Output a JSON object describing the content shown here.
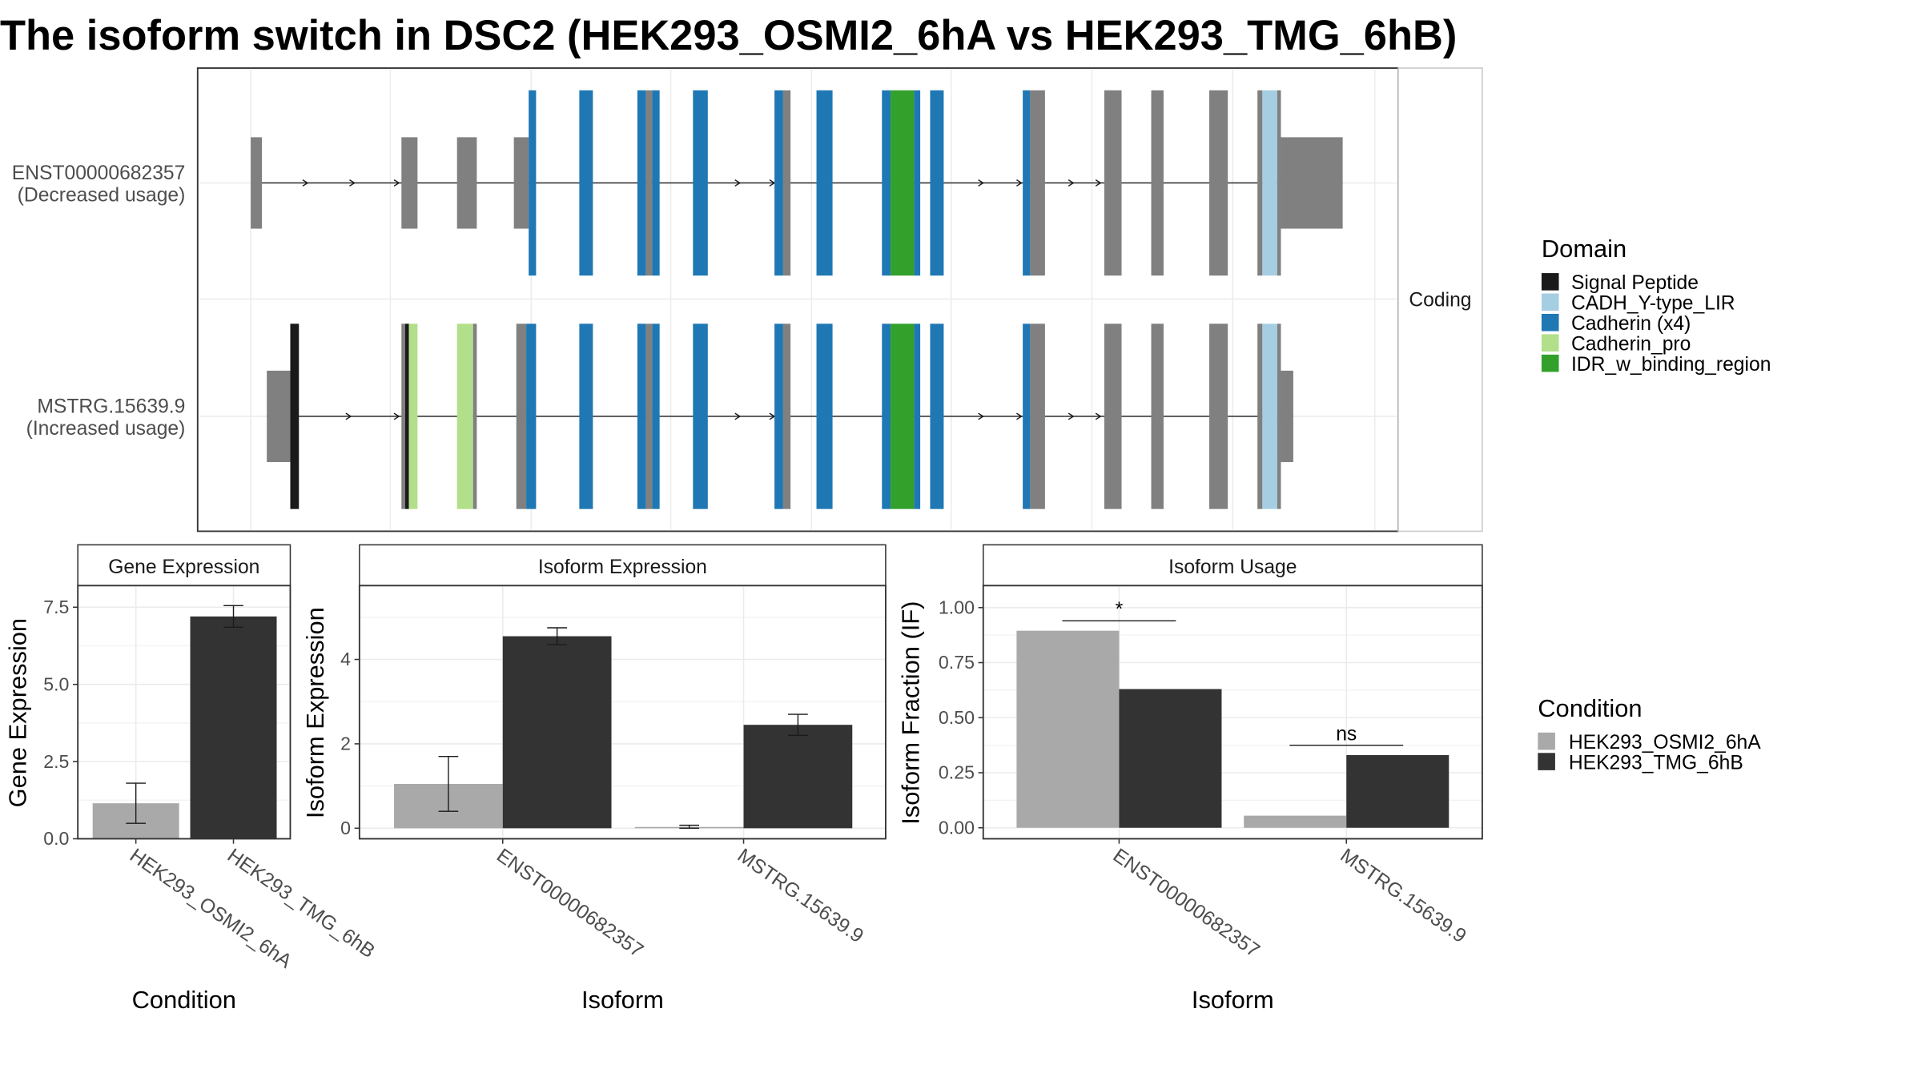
{
  "title": "The isoform switch in DSC2 (HEK293_OSMI2_6hA vs HEK293_TMG_6hB)",
  "colors": {
    "signal_peptide": "#1a1a1a",
    "cadh_lir": "#a6cee3",
    "cadherin": "#1f78b4",
    "cadherin_pro": "#b2df8a",
    "idr": "#33a02c",
    "exon": "#808080",
    "cond_a": "#a9a9a9",
    "cond_b": "#333333"
  },
  "structure": {
    "strip_label": "Coding",
    "isoforms": [
      {
        "id": "ENST00000682357",
        "label": "ENST00000682357",
        "usage": "(Decreased usage)",
        "exons": [
          {
            "s": 203,
            "e": 212,
            "h": "utr"
          },
          {
            "s": 325,
            "e": 338,
            "h": "utr"
          },
          {
            "s": 370,
            "e": 386,
            "h": "utr"
          },
          {
            "s": 416,
            "e": 428,
            "h": "utr"
          },
          {
            "s": 428,
            "e": 434,
            "h": "cds",
            "d": "cadherin"
          },
          {
            "s": 469,
            "e": 480,
            "h": "cds",
            "d": "cadherin"
          },
          {
            "s": 516,
            "e": 523,
            "h": "cds",
            "d": "cadherin"
          },
          {
            "s": 523,
            "e": 528,
            "h": "cds"
          },
          {
            "s": 528,
            "e": 534,
            "h": "cds",
            "d": "cadherin"
          },
          {
            "s": 561,
            "e": 573,
            "h": "cds",
            "d": "cadherin"
          },
          {
            "s": 627,
            "e": 634,
            "h": "cds",
            "d": "cadherin"
          },
          {
            "s": 634,
            "e": 640,
            "h": "cds"
          },
          {
            "s": 661,
            "e": 674,
            "h": "cds",
            "d": "cadherin"
          },
          {
            "s": 714,
            "e": 721,
            "h": "cds",
            "d": "cadherin"
          },
          {
            "s": 721,
            "e": 740,
            "h": "cds",
            "d": "idr"
          },
          {
            "s": 740,
            "e": 745,
            "h": "cds",
            "d": "cadherin"
          },
          {
            "s": 753,
            "e": 764,
            "h": "cds",
            "d": "cadherin"
          },
          {
            "s": 828,
            "e": 834,
            "h": "cds",
            "d": "cadherin"
          },
          {
            "s": 834,
            "e": 846,
            "h": "cds"
          },
          {
            "s": 894,
            "e": 908,
            "h": "cds"
          },
          {
            "s": 932,
            "e": 942,
            "h": "cds"
          },
          {
            "s": 979,
            "e": 994,
            "h": "cds"
          },
          {
            "s": 1018,
            "e": 1022,
            "h": "cds"
          },
          {
            "s": 1022,
            "e": 1034,
            "h": "cds",
            "d": "cadh_lir"
          },
          {
            "s": 1034,
            "e": 1037,
            "h": "cds"
          },
          {
            "s": 1037,
            "e": 1087,
            "h": "utr"
          }
        ]
      },
      {
        "id": "MSTRG.15639.9",
        "label": "MSTRG.15639.9",
        "usage": "(Increased usage)",
        "exons": [
          {
            "s": 216,
            "e": 235,
            "h": "utr"
          },
          {
            "s": 235,
            "e": 242,
            "h": "cds",
            "d": "signal_peptide"
          },
          {
            "s": 325,
            "e": 328,
            "h": "cds"
          },
          {
            "s": 328,
            "e": 331,
            "h": "cds",
            "d": "signal_peptide"
          },
          {
            "s": 331,
            "e": 338,
            "h": "cds",
            "d": "cadherin_pro"
          },
          {
            "s": 370,
            "e": 383,
            "h": "cds",
            "d": "cadherin_pro"
          },
          {
            "s": 383,
            "e": 386,
            "h": "cds"
          },
          {
            "s": 418,
            "e": 426,
            "h": "cds"
          },
          {
            "s": 426,
            "e": 434,
            "h": "cds",
            "d": "cadherin"
          },
          {
            "s": 469,
            "e": 480,
            "h": "cds",
            "d": "cadherin"
          },
          {
            "s": 516,
            "e": 523,
            "h": "cds",
            "d": "cadherin"
          },
          {
            "s": 523,
            "e": 528,
            "h": "cds"
          },
          {
            "s": 528,
            "e": 534,
            "h": "cds",
            "d": "cadherin"
          },
          {
            "s": 561,
            "e": 573,
            "h": "cds",
            "d": "cadherin"
          },
          {
            "s": 627,
            "e": 634,
            "h": "cds",
            "d": "cadherin"
          },
          {
            "s": 634,
            "e": 640,
            "h": "cds"
          },
          {
            "s": 661,
            "e": 674,
            "h": "cds",
            "d": "cadherin"
          },
          {
            "s": 714,
            "e": 721,
            "h": "cds",
            "d": "cadherin"
          },
          {
            "s": 721,
            "e": 740,
            "h": "cds",
            "d": "idr"
          },
          {
            "s": 740,
            "e": 745,
            "h": "cds",
            "d": "cadherin"
          },
          {
            "s": 753,
            "e": 764,
            "h": "cds",
            "d": "cadherin"
          },
          {
            "s": 828,
            "e": 834,
            "h": "cds",
            "d": "cadherin"
          },
          {
            "s": 834,
            "e": 846,
            "h": "cds"
          },
          {
            "s": 894,
            "e": 908,
            "h": "cds"
          },
          {
            "s": 932,
            "e": 942,
            "h": "cds"
          },
          {
            "s": 979,
            "e": 994,
            "h": "cds"
          },
          {
            "s": 1018,
            "e": 1022,
            "h": "cds"
          },
          {
            "s": 1022,
            "e": 1034,
            "h": "cds",
            "d": "cadh_lir"
          },
          {
            "s": 1034,
            "e": 1037,
            "h": "cds"
          },
          {
            "s": 1037,
            "e": 1047,
            "h": "utr"
          }
        ]
      }
    ]
  },
  "legends": {
    "domain": {
      "title": "Domain",
      "items": [
        {
          "label": "Signal Peptide",
          "key": "signal_peptide"
        },
        {
          "label": "CADH_Y-type_LIR",
          "key": "cadh_lir"
        },
        {
          "label": "Cadherin (x4)",
          "key": "cadherin"
        },
        {
          "label": "Cadherin_pro",
          "key": "cadherin_pro"
        },
        {
          "label": "IDR_w_binding_region",
          "key": "idr"
        }
      ]
    },
    "condition": {
      "title": "Condition",
      "items": [
        {
          "label": "HEK293_OSMI2_6hA",
          "key": "cond_a"
        },
        {
          "label": "HEK293_TMG_6hB",
          "key": "cond_b"
        }
      ]
    }
  },
  "chart_data": [
    {
      "type": "bar",
      "title": "Gene Expression",
      "xlabel": "Condition",
      "ylabel": "Gene Expression",
      "ylim": [
        0,
        8.2
      ],
      "yticks": [
        0.0,
        2.5,
        5.0,
        7.5
      ],
      "ytick_labels": [
        "0.0",
        "2.5",
        "5.0",
        "7.5"
      ],
      "categories": [
        "HEK293_OSMI2_6hA",
        "HEK293_TMG_6hB"
      ],
      "series": [
        {
          "name": "HEK293_OSMI2_6hA",
          "values": [
            1.15,
            null
          ],
          "err_low": [
            0.5,
            null
          ],
          "err_high": [
            1.8,
            null
          ]
        },
        {
          "name": "HEK293_TMG_6hB",
          "values": [
            null,
            7.2
          ],
          "err_low": [
            null,
            6.85
          ],
          "err_high": [
            null,
            7.55
          ]
        }
      ]
    },
    {
      "type": "bar",
      "title": "Isoform Expression",
      "xlabel": "Isoform",
      "ylabel": "Isoform Expression",
      "ylim": [
        -0.25,
        5.75
      ],
      "yticks": [
        0,
        2,
        4
      ],
      "ytick_labels": [
        "0",
        "2",
        "4"
      ],
      "categories": [
        "ENST00000682357",
        "MSTRG.15639.9"
      ],
      "series": [
        {
          "name": "HEK293_OSMI2_6hA",
          "values": [
            1.05,
            0.03
          ],
          "err_low": [
            0.4,
            0.0
          ],
          "err_high": [
            1.7,
            0.07
          ]
        },
        {
          "name": "HEK293_TMG_6hB",
          "values": [
            4.55,
            2.45
          ],
          "err_low": [
            4.35,
            2.2
          ],
          "err_high": [
            4.75,
            2.7
          ]
        }
      ]
    },
    {
      "type": "bar",
      "title": "Isoform Usage",
      "xlabel": "Isoform",
      "ylabel": "Isoform Fraction (IF)",
      "ylim": [
        -0.05,
        1.1
      ],
      "yticks": [
        0,
        0.25,
        0.5,
        0.75,
        1.0
      ],
      "ytick_labels": [
        "0.00",
        "0.25",
        "0.50",
        "0.75",
        "1.00"
      ],
      "categories": [
        "ENST00000682357",
        "MSTRG.15639.9"
      ],
      "series": [
        {
          "name": "HEK293_OSMI2_6hA",
          "values": [
            0.895,
            0.055
          ]
        },
        {
          "name": "HEK293_TMG_6hB",
          "values": [
            0.63,
            0.33
          ]
        }
      ],
      "significance": [
        "*",
        "ns"
      ]
    }
  ]
}
